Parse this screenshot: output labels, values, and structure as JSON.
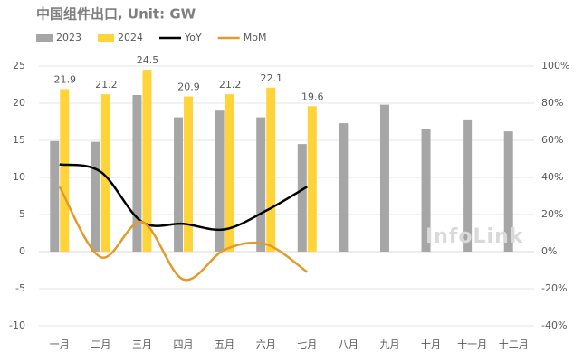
{
  "chart_data": {
    "type": "bar_line",
    "title": "中国组件出口, Unit: GW",
    "watermark": "InfoLink",
    "categories": [
      "一月",
      "二月",
      "三月",
      "四月",
      "五月",
      "六月",
      "七月",
      "八月",
      "九月",
      "十月",
      "十一月",
      "十二月"
    ],
    "series": [
      {
        "name": "2023",
        "kind": "bar",
        "color": "#a6a6a6",
        "values": [
          14.9,
          14.8,
          21.1,
          18.1,
          19.0,
          18.1,
          14.5,
          17.3,
          19.8,
          16.5,
          17.7,
          16.2
        ]
      },
      {
        "name": "2024",
        "kind": "bar",
        "color": "#ffd43b",
        "values": [
          21.9,
          21.2,
          24.5,
          20.9,
          21.2,
          22.1,
          19.6,
          null,
          null,
          null,
          null,
          null
        ],
        "data_labels": true
      },
      {
        "name": "YoY",
        "kind": "line",
        "axis": "y2",
        "color": "#000000",
        "values": [
          47,
          43,
          16,
          15,
          12,
          22,
          35,
          null,
          null,
          null,
          null,
          null
        ]
      },
      {
        "name": "MoM",
        "kind": "line",
        "axis": "y2",
        "color": "#e39a28",
        "values": [
          35,
          -3,
          16,
          -15,
          1,
          4,
          -11,
          null,
          null,
          null,
          null,
          null
        ]
      }
    ],
    "ylim": [
      -10,
      25
    ],
    "yticks": [
      -10,
      -5,
      0,
      5,
      10,
      15,
      20,
      25
    ],
    "y2lim": [
      -40,
      100
    ],
    "y2ticks": [
      {
        "value": -40,
        "label": "-40%"
      },
      {
        "value": -20,
        "label": "-20%"
      },
      {
        "value": 0,
        "label": "0%"
      },
      {
        "value": 20,
        "label": "20%"
      },
      {
        "value": 40,
        "label": "40%"
      },
      {
        "value": 60,
        "label": "60%"
      },
      {
        "value": 80,
        "label": "80%"
      },
      {
        "value": 100,
        "label": "100%"
      }
    ],
    "grid": true
  }
}
